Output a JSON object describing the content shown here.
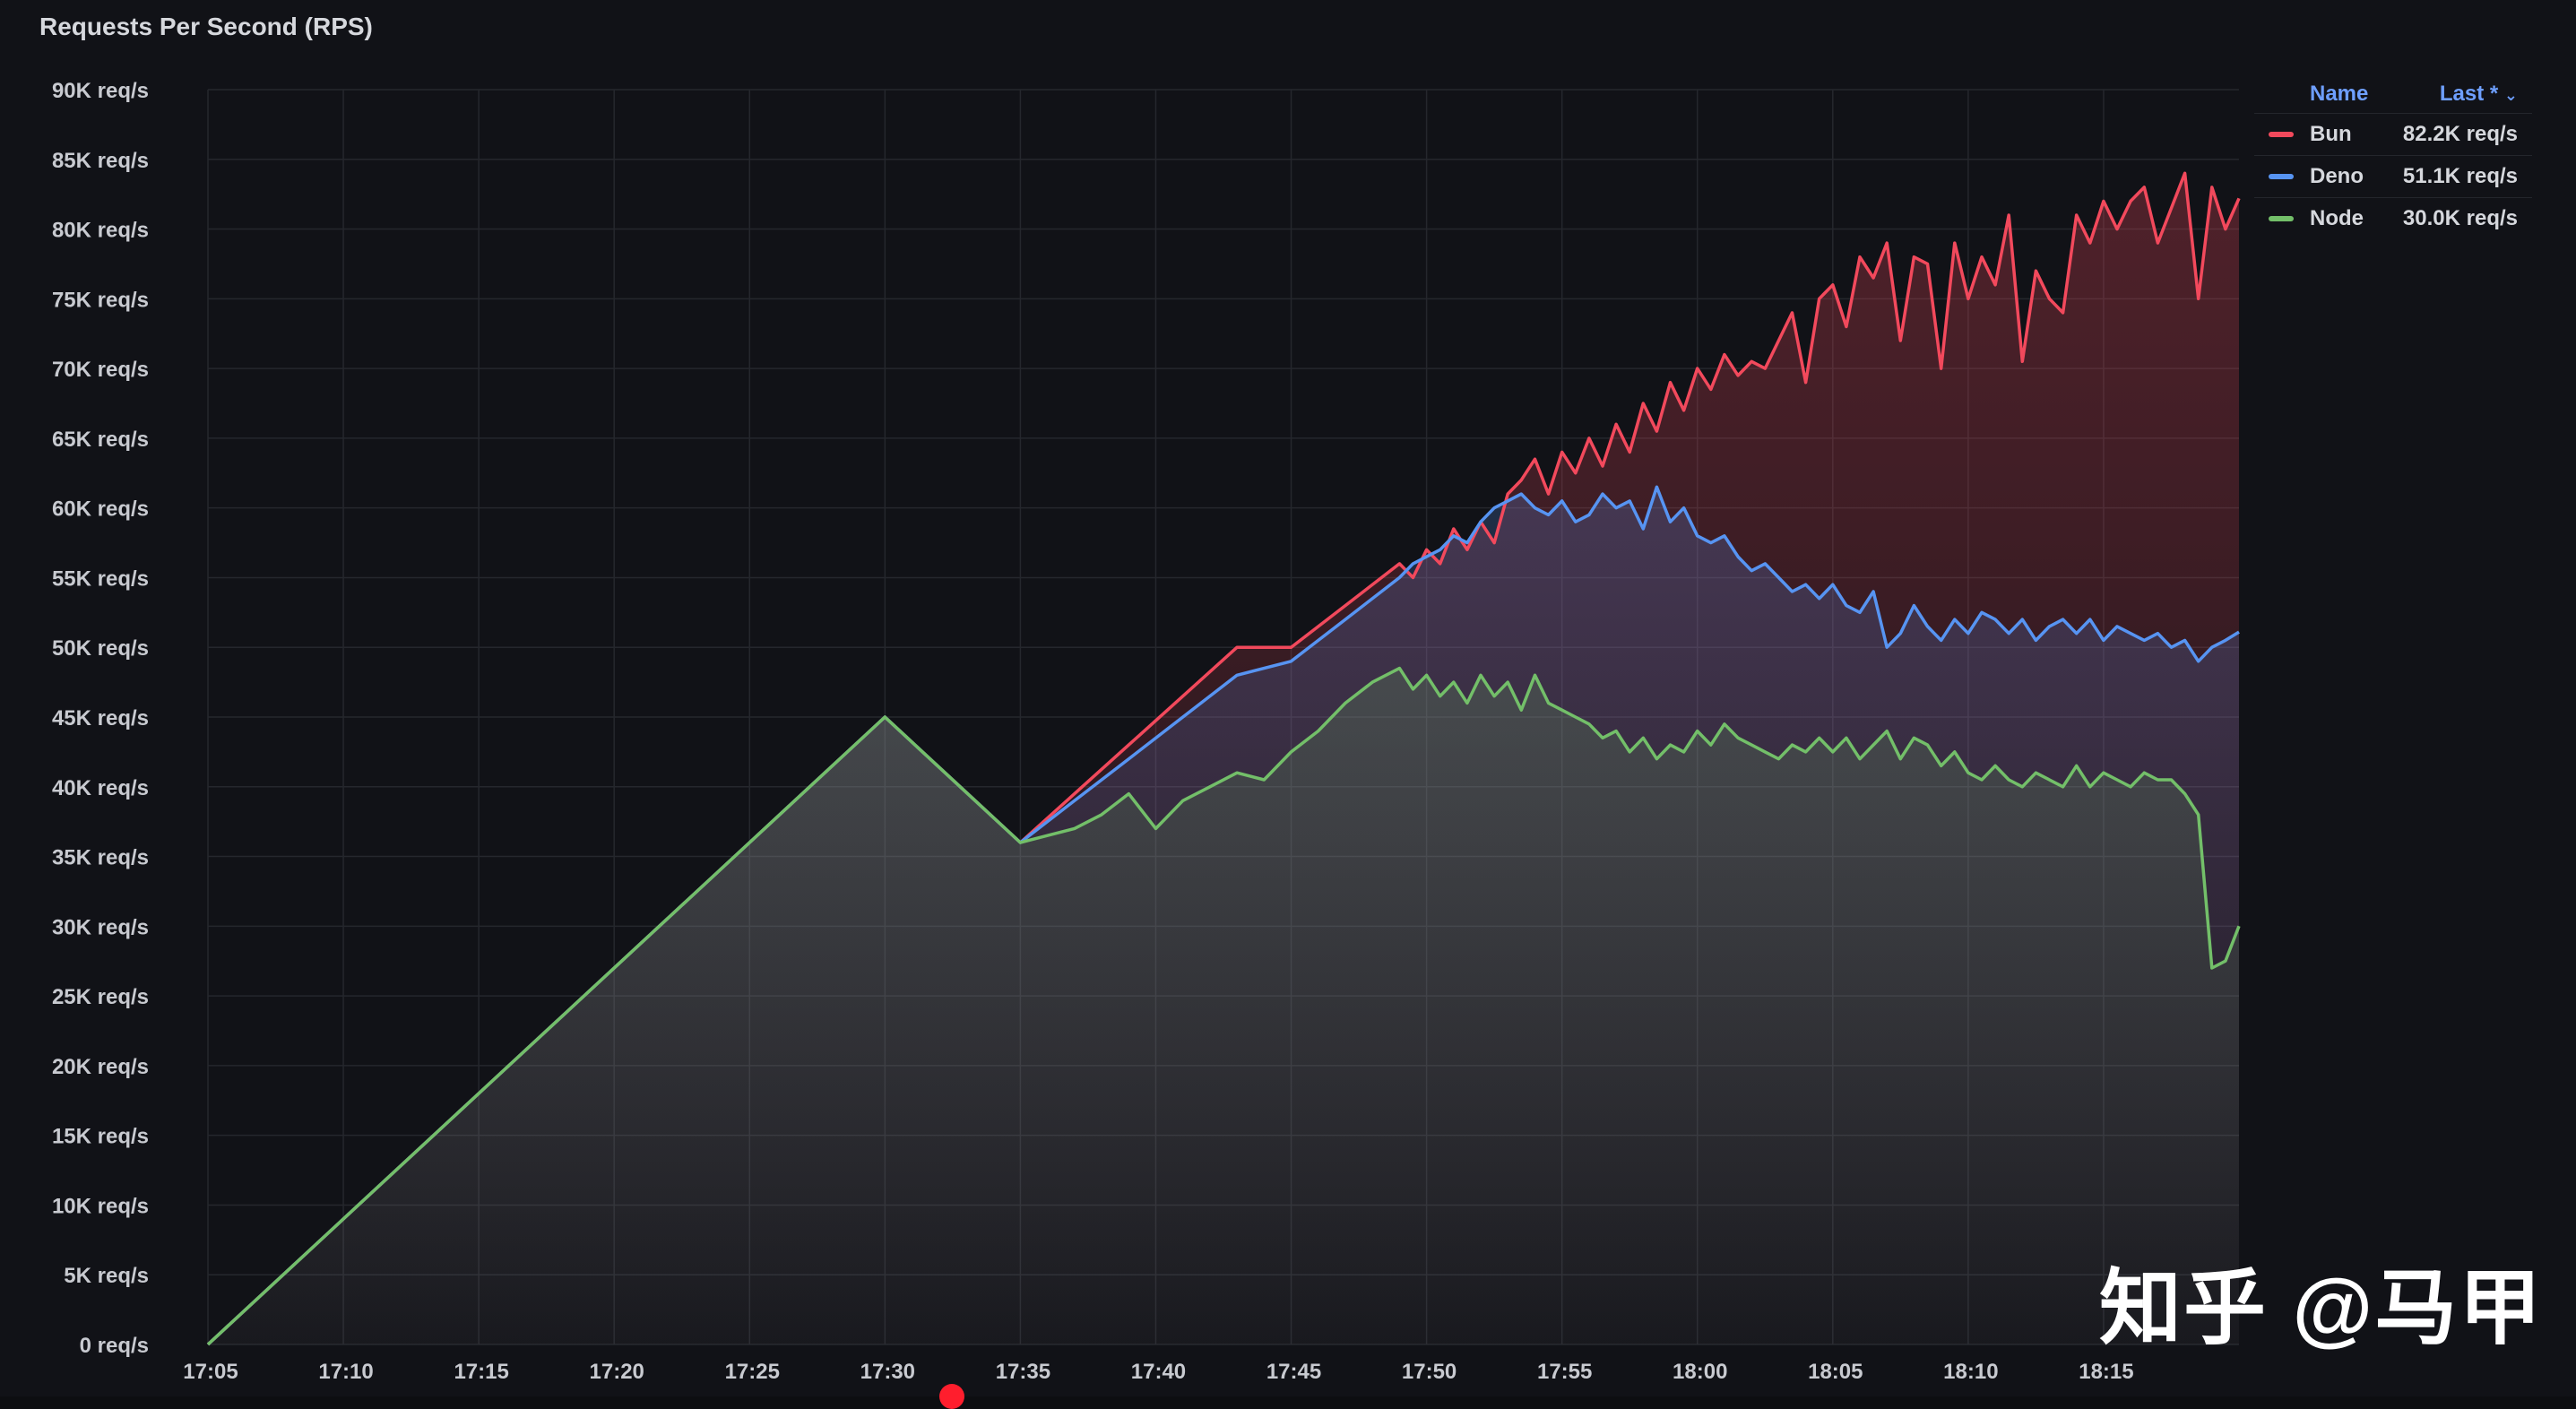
{
  "panel": {
    "title": "Requests Per Second (RPS)"
  },
  "legend": {
    "name_header": "Name",
    "last_header": "Last *",
    "sort_icon": "chevron-down-icon",
    "items": [
      {
        "name": "Bun",
        "last": "82.2K req/s",
        "color": "#f2495c"
      },
      {
        "name": "Deno",
        "last": "51.1K req/s",
        "color": "#5794f2"
      },
      {
        "name": "Node",
        "last": "30.0K req/s",
        "color": "#73bf69"
      }
    ]
  },
  "watermark": "知乎 @马甲",
  "chart_data": {
    "type": "line",
    "title": "Requests Per Second (RPS)",
    "xlabel": "",
    "ylabel": "",
    "x_ticks": [
      "17:05",
      "17:10",
      "17:15",
      "17:20",
      "17:25",
      "17:30",
      "17:35",
      "17:40",
      "17:45",
      "17:50",
      "17:55",
      "18:00",
      "18:05",
      "18:10",
      "18:15"
    ],
    "y_ticks": [
      "0 req/s",
      "5K req/s",
      "10K req/s",
      "15K req/s",
      "20K req/s",
      "25K req/s",
      "30K req/s",
      "35K req/s",
      "40K req/s",
      "45K req/s",
      "50K req/s",
      "55K req/s",
      "60K req/s",
      "65K req/s",
      "70K req/s",
      "75K req/s",
      "80K req/s",
      "85K req/s",
      "90K req/s"
    ],
    "xlim": [
      "17:05",
      "18:20"
    ],
    "ylim": [
      0,
      90000
    ],
    "grid": true,
    "legend_position": "top-right",
    "x_unit": "minutes after 17:05",
    "series": [
      {
        "name": "Bun",
        "color": "#f2495c",
        "x": [
          0,
          5,
          10,
          15,
          20,
          25,
          30,
          32,
          34,
          36,
          38,
          40,
          42,
          44,
          44.5,
          45,
          45.5,
          46,
          46.5,
          47,
          47.5,
          48,
          48.5,
          49,
          49.5,
          50,
          50.5,
          51,
          51.5,
          52,
          52.5,
          53,
          53.5,
          54,
          54.5,
          55,
          55.5,
          56,
          56.5,
          57,
          57.5,
          58,
          58.5,
          59,
          59.5,
          60,
          60.5,
          61,
          61.5,
          62,
          62.5,
          63,
          63.5,
          64,
          64.5,
          65,
          65.5,
          66,
          66.5,
          67,
          67.5,
          68,
          68.5,
          69,
          69.5,
          70,
          70.5,
          71,
          71.5,
          72,
          72.5,
          73,
          73.5,
          74,
          74.5,
          75
        ],
        "y": [
          0,
          9000,
          18000,
          27000,
          36000,
          45000,
          36000,
          39500,
          43000,
          46500,
          50000,
          50000,
          53000,
          56000,
          55000,
          57000,
          56000,
          58500,
          57000,
          59000,
          57500,
          61000,
          62000,
          63500,
          61000,
          64000,
          62500,
          65000,
          63000,
          66000,
          64000,
          67500,
          65500,
          69000,
          67000,
          70000,
          68500,
          71000,
          69500,
          70500,
          70000,
          72000,
          74000,
          69000,
          75000,
          76000,
          73000,
          78000,
          76500,
          79000,
          72000,
          78000,
          77500,
          70000,
          79000,
          75000,
          78000,
          76000,
          81000,
          70500,
          77000,
          75000,
          74000,
          81000,
          79000,
          82000,
          80000,
          82000,
          83000,
          79000,
          81500,
          84000,
          75000,
          83000,
          80000,
          82200
        ]
      },
      {
        "name": "Deno",
        "color": "#5794f2",
        "x": [
          0,
          10,
          20,
          25,
          30,
          32,
          34,
          36,
          38,
          40,
          42,
          44,
          44.5,
          45,
          45.5,
          46,
          46.5,
          47,
          47.5,
          48,
          48.5,
          49,
          49.5,
          50,
          50.5,
          51,
          51.5,
          52,
          52.5,
          53,
          53.5,
          54,
          54.5,
          55,
          55.5,
          56,
          56.5,
          57,
          57.5,
          58,
          58.5,
          59,
          59.5,
          60,
          60.5,
          61,
          61.5,
          62,
          62.5,
          63,
          63.5,
          64,
          64.5,
          65,
          65.5,
          66,
          66.5,
          67,
          67.5,
          68,
          68.5,
          69,
          69.5,
          70,
          70.5,
          71,
          71.5,
          72,
          72.5,
          73,
          73.5,
          74,
          74.5,
          75
        ],
        "y": [
          0,
          18000,
          36000,
          45000,
          36000,
          39000,
          42000,
          45000,
          48000,
          49000,
          52000,
          55000,
          56000,
          56500,
          57000,
          58000,
          57500,
          59000,
          60000,
          60500,
          61000,
          60000,
          59500,
          60500,
          59000,
          59500,
          61000,
          60000,
          60500,
          58500,
          61500,
          59000,
          60000,
          58000,
          57500,
          58000,
          56500,
          55500,
          56000,
          55000,
          54000,
          54500,
          53500,
          54500,
          53000,
          52500,
          54000,
          50000,
          51000,
          53000,
          51500,
          50500,
          52000,
          51000,
          52500,
          52000,
          51000,
          52000,
          50500,
          51500,
          52000,
          51000,
          52000,
          50500,
          51500,
          51000,
          50500,
          51000,
          50000,
          50500,
          49000,
          50000,
          50500,
          51100
        ]
      },
      {
        "name": "Node",
        "color": "#73bf69",
        "x": [
          0,
          10,
          20,
          25,
          30,
          31,
          32,
          33,
          34,
          35,
          36,
          37,
          38,
          39,
          40,
          41,
          42,
          43,
          44,
          44.5,
          45,
          45.5,
          46,
          46.5,
          47,
          47.5,
          48,
          48.5,
          49,
          49.5,
          50,
          50.5,
          51,
          51.5,
          52,
          52.5,
          53,
          53.5,
          54,
          54.5,
          55,
          55.5,
          56,
          56.5,
          57,
          57.5,
          58,
          58.5,
          59,
          59.5,
          60,
          60.5,
          61,
          61.5,
          62,
          62.5,
          63,
          63.5,
          64,
          64.5,
          65,
          65.5,
          66,
          66.5,
          67,
          67.5,
          68,
          68.5,
          69,
          69.5,
          70,
          70.5,
          71,
          71.5,
          72,
          72.5,
          73,
          73.5,
          74,
          74.5,
          75
        ],
        "y": [
          0,
          18000,
          36000,
          45000,
          36000,
          36500,
          37000,
          38000,
          39500,
          37000,
          39000,
          40000,
          41000,
          40500,
          42500,
          44000,
          46000,
          47500,
          48500,
          47000,
          48000,
          46500,
          47500,
          46000,
          48000,
          46500,
          47500,
          45500,
          48000,
          46000,
          45500,
          45000,
          44500,
          43500,
          44000,
          42500,
          43500,
          42000,
          43000,
          42500,
          44000,
          43000,
          44500,
          43500,
          43000,
          42500,
          42000,
          43000,
          42500,
          43500,
          42500,
          43500,
          42000,
          43000,
          44000,
          42000,
          43500,
          43000,
          41500,
          42500,
          41000,
          40500,
          41500,
          40500,
          40000,
          41000,
          40500,
          40000,
          41500,
          40000,
          41000,
          40500,
          40000,
          41000,
          40500,
          40500,
          39500,
          38000,
          27000,
          27500,
          30000
        ]
      }
    ]
  }
}
